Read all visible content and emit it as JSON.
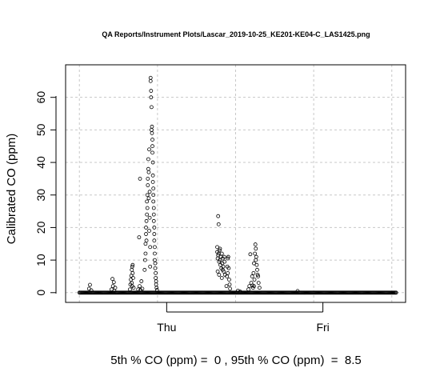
{
  "chart_data": {
    "type": "scatter",
    "title": "QA Reports/Instrument Plots/Lascar_2019-10-25_KE201-KE04-C_LAS1425.png",
    "ylabel": "Calibrated CO (ppm)",
    "xlabel": "5th % CO (ppm) =  0 , 95th % CO (ppm)  =  8.5",
    "xunit": "hours since first reading",
    "xlim": [
      -3,
      71
    ],
    "ylim": [
      -3,
      70
    ],
    "x_ticks": [
      {
        "x": 19,
        "label": "Thu"
      },
      {
        "x": 53,
        "label": "Fri"
      }
    ],
    "y_ticks": [
      0,
      10,
      20,
      30,
      40,
      50,
      60
    ],
    "grid": true,
    "legend": "none",
    "marker": "open-circle",
    "colors": {
      "points": "#000000",
      "grid": "#c8c8c8",
      "axis": "#000000"
    },
    "baseline": {
      "y": 0,
      "x_start": 0,
      "x_end": 69
    },
    "points": [
      [
        2.1,
        1.2
      ],
      [
        2.3,
        2.4
      ],
      [
        2.6,
        0.7
      ],
      [
        7.0,
        1.0
      ],
      [
        7.2,
        4.2
      ],
      [
        7.3,
        2.0
      ],
      [
        7.5,
        3.2
      ],
      [
        7.6,
        0.6
      ],
      [
        7.8,
        1.5
      ],
      [
        11.0,
        1.0
      ],
      [
        11.1,
        2.5
      ],
      [
        11.2,
        4.0
      ],
      [
        11.3,
        5.2
      ],
      [
        11.4,
        3.0
      ],
      [
        11.4,
        7.0
      ],
      [
        11.5,
        8.0
      ],
      [
        11.5,
        2.0
      ],
      [
        11.6,
        6.0
      ],
      [
        11.6,
        8.5
      ],
      [
        11.7,
        4.5
      ],
      [
        11.8,
        1.5
      ],
      [
        12.8,
        1.0
      ],
      [
        13.0,
        17.0
      ],
      [
        13.1,
        2.0
      ],
      [
        13.2,
        35.0
      ],
      [
        13.3,
        0.8
      ],
      [
        13.5,
        3.5
      ],
      [
        13.7,
        1.2
      ],
      [
        14.2,
        7.0
      ],
      [
        14.3,
        10.0
      ],
      [
        14.4,
        12.0
      ],
      [
        14.4,
        15.0
      ],
      [
        14.5,
        18.0
      ],
      [
        14.5,
        20.0
      ],
      [
        14.6,
        16.0
      ],
      [
        14.6,
        22.0
      ],
      [
        14.7,
        24.0
      ],
      [
        14.7,
        28.0
      ],
      [
        14.8,
        30.0
      ],
      [
        14.8,
        26.0
      ],
      [
        14.9,
        33.0
      ],
      [
        14.9,
        35.0
      ],
      [
        15.0,
        38.0
      ],
      [
        15.0,
        41.0
      ],
      [
        15.1,
        29.0
      ],
      [
        15.1,
        37.0
      ],
      [
        15.2,
        44.0
      ],
      [
        15.2,
        19.0
      ],
      [
        15.3,
        31.0
      ],
      [
        15.3,
        23.0
      ],
      [
        15.4,
        14.0
      ],
      [
        15.4,
        8.0
      ],
      [
        15.5,
        66.0
      ],
      [
        15.5,
        65.0
      ],
      [
        15.6,
        62.0
      ],
      [
        15.6,
        60.0
      ],
      [
        15.7,
        57.0
      ],
      [
        15.7,
        50.0
      ],
      [
        15.8,
        51.0
      ],
      [
        15.8,
        49.0
      ],
      [
        15.9,
        47.0
      ],
      [
        15.9,
        45.0
      ],
      [
        15.9,
        43.0
      ],
      [
        16.0,
        40.0
      ],
      [
        16.0,
        36.0
      ],
      [
        16.0,
        34.0
      ],
      [
        16.1,
        32.0
      ],
      [
        16.1,
        30.0
      ],
      [
        16.1,
        28.0
      ],
      [
        16.2,
        26.0
      ],
      [
        16.2,
        24.0
      ],
      [
        16.2,
        22.0
      ],
      [
        16.3,
        20.0
      ],
      [
        16.3,
        18.0
      ],
      [
        16.3,
        16.0
      ],
      [
        16.4,
        14.0
      ],
      [
        16.4,
        12.0
      ],
      [
        16.4,
        10.0
      ],
      [
        16.5,
        9.0
      ],
      [
        16.5,
        7.5
      ],
      [
        16.6,
        6.0
      ],
      [
        16.6,
        4.5
      ],
      [
        16.7,
        3.5
      ],
      [
        16.7,
        2.5
      ],
      [
        16.8,
        1.5
      ],
      [
        16.9,
        0.8
      ],
      [
        30.0,
        14.0
      ],
      [
        30.2,
        23.5
      ],
      [
        30.3,
        21.0
      ],
      [
        30.0,
        12.5
      ],
      [
        30.1,
        10.5
      ],
      [
        30.2,
        11.5
      ],
      [
        30.3,
        12.0
      ],
      [
        30.4,
        9.5
      ],
      [
        30.5,
        13.0
      ],
      [
        30.6,
        10.0
      ],
      [
        30.7,
        8.5
      ],
      [
        30.8,
        11.0
      ],
      [
        30.9,
        7.5
      ],
      [
        31.0,
        12.0
      ],
      [
        31.1,
        9.0
      ],
      [
        31.2,
        10.5
      ],
      [
        31.3,
        8.0
      ],
      [
        31.4,
        6.5
      ],
      [
        31.5,
        11.0
      ],
      [
        31.6,
        9.5
      ],
      [
        31.7,
        5.5
      ],
      [
        30.1,
        6.5
      ],
      [
        30.4,
        5.5
      ],
      [
        31.0,
        4.5
      ],
      [
        30.6,
        13.5
      ],
      [
        31.2,
        7.0
      ],
      [
        32.0,
        2.0
      ],
      [
        32.1,
        5.0
      ],
      [
        32.2,
        8.0
      ],
      [
        32.3,
        10.5
      ],
      [
        32.4,
        11.0
      ],
      [
        32.5,
        7.5
      ],
      [
        32.6,
        4.0
      ],
      [
        32.7,
        2.5
      ],
      [
        32.8,
        1.2
      ],
      [
        32.3,
        6.0
      ],
      [
        34.5,
        0.6
      ],
      [
        35.0,
        0.3
      ],
      [
        36.8,
        1.0
      ],
      [
        37.0,
        2.0
      ],
      [
        37.2,
        11.8
      ],
      [
        37.4,
        3.0
      ],
      [
        37.6,
        5.0
      ],
      [
        37.7,
        2.2
      ],
      [
        37.8,
        1.5
      ],
      [
        37.9,
        6.0
      ],
      [
        38.0,
        9.0
      ],
      [
        38.1,
        4.0
      ],
      [
        38.2,
        12.0
      ],
      [
        38.3,
        14.8
      ],
      [
        38.4,
        13.5
      ],
      [
        38.5,
        11.0
      ],
      [
        38.6,
        8.5
      ],
      [
        38.7,
        7.0
      ],
      [
        38.8,
        5.5
      ],
      [
        38.9,
        5.0
      ],
      [
        39.0,
        3.0
      ],
      [
        39.2,
        1.5
      ],
      [
        38.0,
        2.0
      ],
      [
        38.4,
        10.0
      ],
      [
        47.5,
        0.5
      ]
    ]
  }
}
